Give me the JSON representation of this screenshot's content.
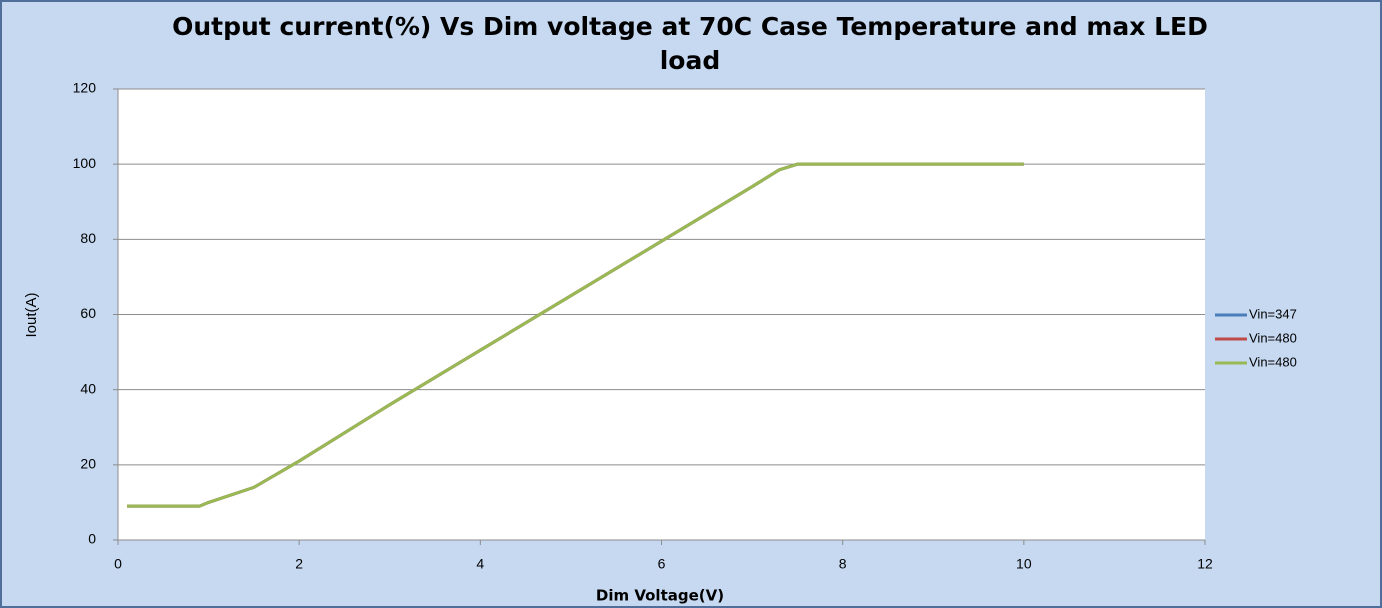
{
  "chart_data": {
    "type": "line",
    "title": "Output current(%) Vs Dim voltage at 70C Case Temperature and max LED load",
    "x_label": "Dim Voltage(V)",
    "y_label": "Iout(A)",
    "x": [
      0.1,
      0.9,
      1.0,
      1.5,
      2,
      3,
      4,
      5,
      6,
      7,
      7.3,
      7.5,
      8,
      9,
      10
    ],
    "series": [
      {
        "name": "Vin=347",
        "color": "#4a7ebb",
        "values": [
          9,
          9,
          10,
          14,
          21,
          36,
          50.5,
          65,
          79.5,
          94,
          98.5,
          100,
          100,
          100,
          100
        ]
      },
      {
        "name": "Vin=480",
        "color": "#be4b48",
        "values": [
          9,
          9,
          10,
          14,
          21,
          36,
          50.5,
          65,
          79.5,
          94,
          98.5,
          100,
          100,
          100,
          100
        ]
      },
      {
        "name": "Vin=480",
        "color": "#98b954",
        "values": [
          9,
          9,
          10,
          14,
          21,
          36,
          50.5,
          65,
          79.5,
          94,
          98.5,
          100,
          100,
          100,
          100
        ]
      }
    ],
    "xlim": [
      0,
      12
    ],
    "xticks": [
      0,
      2,
      4,
      6,
      8,
      10,
      12
    ],
    "ylim": [
      0,
      120
    ],
    "yticks": [
      0,
      20,
      40,
      60,
      80,
      100,
      120
    ],
    "grid": true,
    "legend": "right"
  }
}
